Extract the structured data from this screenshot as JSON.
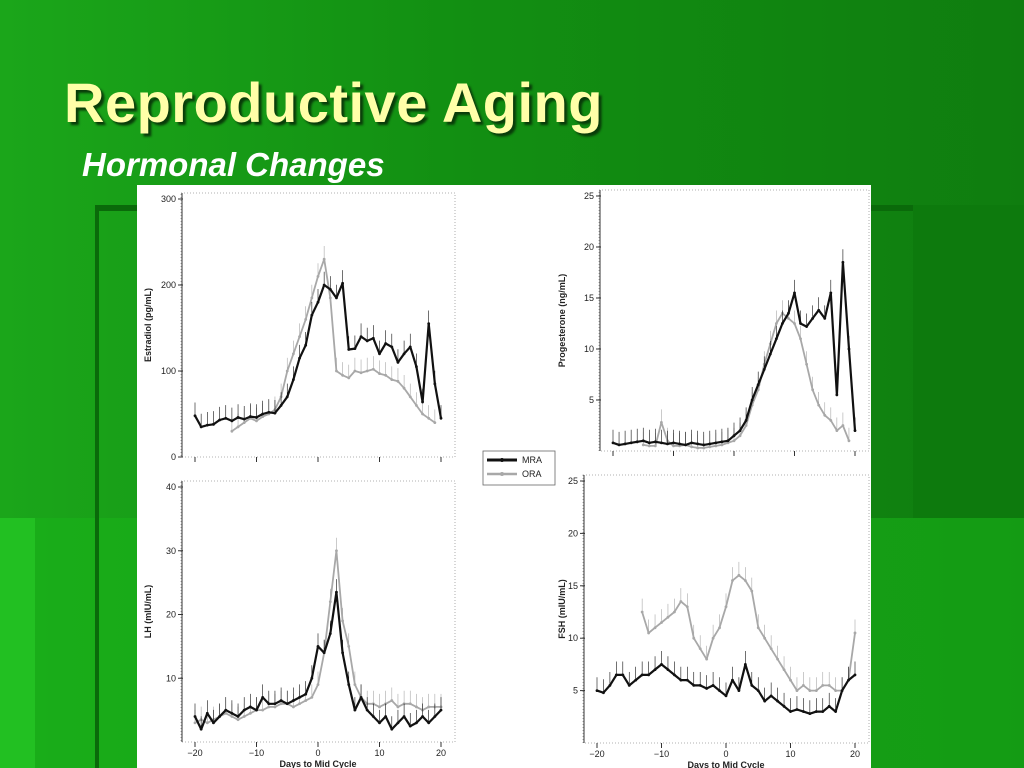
{
  "slide": {
    "title": "Reproductive Aging",
    "subtitle": "Hormonal Changes"
  },
  "colors": {
    "mra": "#111111",
    "ora": "#a8a8a8"
  },
  "legend": {
    "items": [
      "MRA",
      "ORA"
    ]
  },
  "chart_data": [
    {
      "type": "line",
      "ylabel": "Estradiol (pg/mL)",
      "xlabel": "",
      "ylim": [
        0,
        300
      ],
      "yticks": [
        "0",
        "100",
        "200",
        "300"
      ],
      "xticks": [],
      "xlim": [
        -20,
        20
      ],
      "x": [
        -20,
        -19,
        -18,
        -17,
        -16,
        -15,
        -14,
        -13,
        -12,
        -11,
        -10,
        -9,
        -8,
        -7,
        -6,
        -5,
        -4,
        -3,
        -2,
        -1,
        0,
        1,
        2,
        3,
        4,
        5,
        6,
        7,
        8,
        9,
        10,
        11,
        12,
        13,
        14,
        15,
        16,
        17,
        18,
        19,
        20
      ],
      "series": [
        {
          "name": "MRA",
          "values": [
            48,
            35,
            37,
            38,
            43,
            45,
            42,
            46,
            44,
            47,
            46,
            50,
            52,
            51,
            60,
            70,
            90,
            115,
            130,
            165,
            180,
            200,
            195,
            185,
            202,
            125,
            126,
            140,
            135,
            138,
            120,
            132,
            128,
            110,
            120,
            128,
            105,
            64,
            155,
            85,
            45
          ]
        },
        {
          "name": "ORA",
          "values": [
            null,
            null,
            null,
            null,
            null,
            null,
            30,
            35,
            40,
            45,
            42,
            47,
            50,
            55,
            70,
            100,
            120,
            140,
            160,
            185,
            210,
            230,
            185,
            100,
            95,
            92,
            100,
            98,
            100,
            102,
            97,
            95,
            90,
            88,
            80,
            70,
            60,
            50,
            45,
            40,
            null
          ]
        }
      ]
    },
    {
      "type": "line",
      "ylabel": "Progesterone (ng/mL)",
      "xlabel": "",
      "ylim": [
        0,
        25
      ],
      "yticks": [
        "5",
        "10",
        "15",
        "20",
        "25"
      ],
      "xticks": [],
      "xlim": [
        -20,
        20
      ],
      "x": [
        -20,
        -19,
        -18,
        -17,
        -16,
        -15,
        -14,
        -13,
        -12,
        -11,
        -10,
        -9,
        -8,
        -7,
        -6,
        -5,
        -4,
        -3,
        -2,
        -1,
        0,
        1,
        2,
        3,
        4,
        5,
        6,
        7,
        8,
        9,
        10,
        11,
        12,
        13,
        14,
        15,
        16,
        17,
        18,
        19,
        20
      ],
      "series": [
        {
          "name": "MRA",
          "values": [
            0.8,
            0.6,
            0.7,
            0.8,
            0.9,
            1.0,
            0.8,
            0.9,
            0.8,
            0.7,
            0.8,
            0.7,
            0.6,
            0.8,
            0.7,
            0.6,
            0.7,
            0.8,
            0.9,
            1.0,
            1.5,
            2.0,
            3.0,
            5.0,
            6.5,
            8.0,
            9.5,
            11.0,
            12.5,
            13.5,
            15.5,
            12.5,
            12.2,
            13.0,
            13.8,
            13.0,
            15.5,
            5.5,
            18.5,
            10.0,
            2.0
          ]
        },
        {
          "name": "ORA",
          "values": [
            null,
            null,
            null,
            null,
            null,
            0.6,
            0.5,
            0.5,
            2.8,
            1.0,
            0.5,
            0.5,
            0.6,
            0.4,
            0.3,
            0.3,
            0.4,
            0.5,
            0.6,
            0.8,
            1.0,
            1.5,
            2.5,
            4.5,
            6.0,
            8.5,
            10.5,
            12.5,
            13.5,
            13.0,
            12.5,
            11.0,
            8.5,
            6.0,
            4.5,
            3.5,
            3.0,
            2.0,
            2.5,
            1.0,
            null
          ]
        }
      ]
    },
    {
      "type": "line",
      "ylabel": "LH (mIU/mL)",
      "xlabel": "Days to Mid Cycle",
      "ylim": [
        0,
        40
      ],
      "yticks": [
        "10",
        "20",
        "30",
        "40"
      ],
      "xticks": [
        "-20",
        "-10",
        "0",
        "10",
        "20"
      ],
      "xlim": [
        -20,
        20
      ],
      "x": [
        -20,
        -19,
        -18,
        -17,
        -16,
        -15,
        -14,
        -13,
        -12,
        -11,
        -10,
        -9,
        -8,
        -7,
        -6,
        -5,
        -4,
        -3,
        -2,
        -1,
        0,
        1,
        2,
        3,
        4,
        5,
        6,
        7,
        8,
        9,
        10,
        11,
        12,
        13,
        14,
        15,
        16,
        17,
        18,
        19,
        20
      ],
      "series": [
        {
          "name": "MRA",
          "values": [
            4,
            2,
            4.5,
            3,
            4,
            5,
            4.5,
            4,
            5,
            5.5,
            5,
            7,
            6,
            6,
            6.5,
            6,
            6.5,
            7,
            7.5,
            10,
            15,
            14,
            17,
            23.5,
            14,
            9,
            5,
            7,
            5,
            4,
            3,
            4,
            2,
            3,
            4,
            2.5,
            3,
            4,
            3,
            4,
            5
          ]
        },
        {
          "name": "ORA",
          "values": [
            3,
            3.5,
            3,
            3.5,
            4,
            4.5,
            4,
            3.5,
            4,
            4.5,
            5,
            5,
            5.5,
            5.5,
            6,
            6,
            5.5,
            6,
            6.5,
            7,
            9,
            14,
            22,
            30,
            19,
            15,
            9,
            7,
            6,
            6,
            5.5,
            6,
            6.5,
            5.5,
            6,
            6,
            5.5,
            5,
            5.5,
            5.5,
            5.5
          ]
        }
      ]
    },
    {
      "type": "line",
      "ylabel": "FSH (mIU/mL)",
      "xlabel": "Days to Mid Cycle",
      "ylim": [
        0,
        25
      ],
      "yticks": [
        "5",
        "10",
        "15",
        "20",
        "25"
      ],
      "xticks": [
        "-20",
        "-10",
        "0",
        "10",
        "20"
      ],
      "xlim": [
        -20,
        20
      ],
      "x": [
        -20,
        -19,
        -18,
        -17,
        -16,
        -15,
        -14,
        -13,
        -12,
        -11,
        -10,
        -9,
        -8,
        -7,
        -6,
        -5,
        -4,
        -3,
        -2,
        -1,
        0,
        1,
        2,
        3,
        4,
        5,
        6,
        7,
        8,
        9,
        10,
        11,
        12,
        13,
        14,
        15,
        16,
        17,
        18,
        19,
        20
      ],
      "series": [
        {
          "name": "MRA",
          "values": [
            5,
            4.8,
            5.5,
            6.5,
            6.5,
            5.5,
            6,
            6.5,
            6.5,
            7,
            7.5,
            7,
            6.5,
            6,
            6,
            5.5,
            5.5,
            5.2,
            5.5,
            5,
            4.5,
            6,
            5,
            7.5,
            5.5,
            5,
            4,
            4.5,
            4,
            3.5,
            3,
            3.2,
            3,
            2.8,
            3,
            3,
            3.5,
            3,
            5,
            6,
            6.5
          ]
        },
        {
          "name": "ORA",
          "values": [
            null,
            null,
            null,
            null,
            null,
            null,
            null,
            12.5,
            10.5,
            11,
            11.5,
            12,
            12.5,
            13.5,
            13,
            10,
            9,
            8,
            10,
            11,
            13,
            15.5,
            16,
            15.5,
            14.5,
            11,
            10,
            9,
            8,
            7,
            6,
            5,
            5.5,
            5,
            5,
            5.5,
            5.5,
            5,
            5,
            6,
            10.5
          ]
        }
      ]
    }
  ]
}
